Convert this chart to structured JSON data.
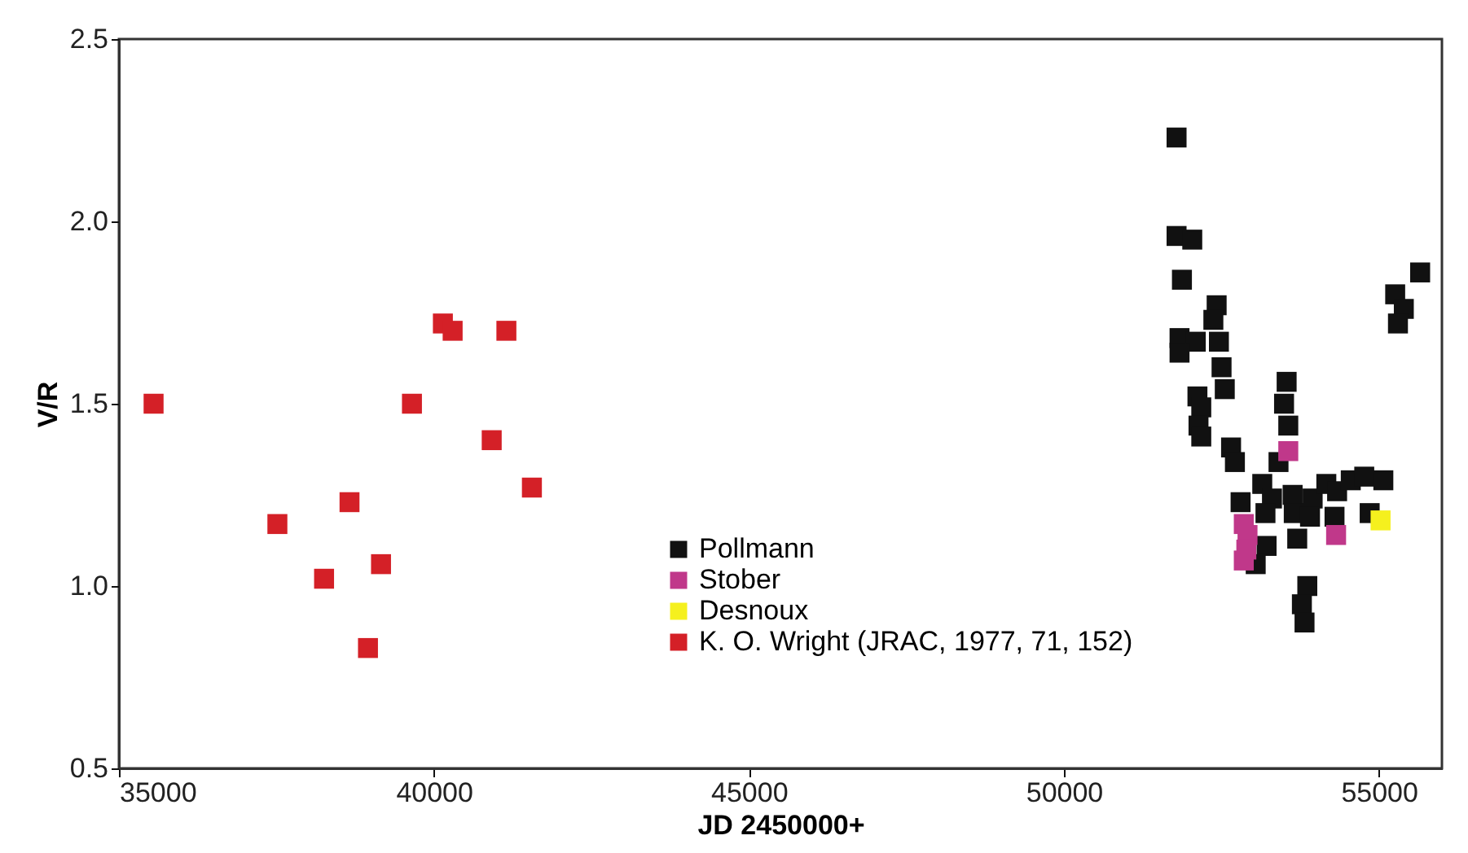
{
  "chart_data": {
    "type": "scatter",
    "xlabel": "JD 2450000+",
    "ylabel": "V/R",
    "xlim": [
      35000,
      56000
    ],
    "xticks": [
      35000,
      40000,
      45000,
      50000,
      55000
    ],
    "ylim": [
      0.5,
      2.5
    ],
    "yticks": [
      {
        "value": 0.5,
        "label": "0.5"
      },
      {
        "value": 1.0,
        "label": "1.0"
      },
      {
        "value": 1.5,
        "label": "1.5"
      },
      {
        "value": 2.0,
        "label": "2.0"
      },
      {
        "value": 2.5,
        "label": "2.5"
      }
    ],
    "grid": false,
    "legend": "bottom",
    "marker": "square",
    "series": [
      {
        "name": "Pollmann",
        "color": "#111111",
        "x": [
          51788,
          51788,
          52037,
          51873,
          52424,
          52372,
          51835,
          52093,
          51835,
          52460,
          52502,
          52553,
          52119,
          52180,
          52136,
          53535,
          53494,
          53561,
          55654,
          55258,
          55395,
          55302,
          52180,
          52653,
          52714,
          53406,
          53148,
          52804,
          53302,
          53199,
          53630,
          53648,
          53948,
          54165,
          54336,
          54553,
          54767,
          55070,
          53906,
          54295,
          53703,
          54853,
          53217,
          53044,
          53863,
          53777,
          53819
        ],
        "values": [
          2.23,
          1.96,
          1.95,
          1.84,
          1.77,
          1.73,
          1.68,
          1.67,
          1.64,
          1.67,
          1.6,
          1.54,
          1.52,
          1.49,
          1.44,
          1.56,
          1.5,
          1.44,
          1.86,
          1.8,
          1.76,
          1.72,
          1.41,
          1.38,
          1.34,
          1.34,
          1.28,
          1.23,
          1.24,
          1.2,
          1.25,
          1.2,
          1.24,
          1.28,
          1.26,
          1.29,
          1.3,
          1.29,
          1.19,
          1.19,
          1.13,
          1.2,
          1.11,
          1.06,
          1.0,
          0.95,
          0.9
        ]
      },
      {
        "name": "Stober",
        "color": "#c0388a",
        "x": [
          52855,
          52914,
          52895,
          52855,
          54320,
          53561
        ],
        "values": [
          1.17,
          1.14,
          1.1,
          1.07,
          1.14,
          1.37
        ]
      },
      {
        "name": "Desnoux",
        "color": "#f5f01e",
        "x": [
          55026
        ],
        "values": [
          1.18
        ]
      },
      {
        "name": "K. O. Wright (JRAC, 1977, 71, 152)",
        "color": "#d42027",
        "x": [
          35550,
          37515,
          38256,
          38660,
          38953,
          39160,
          39651,
          40142,
          40297,
          41150,
          40917,
          41555
        ],
        "values": [
          1.5,
          1.17,
          1.02,
          1.23,
          0.83,
          1.06,
          1.5,
          1.72,
          1.7,
          1.7,
          1.4,
          1.27
        ]
      }
    ]
  }
}
